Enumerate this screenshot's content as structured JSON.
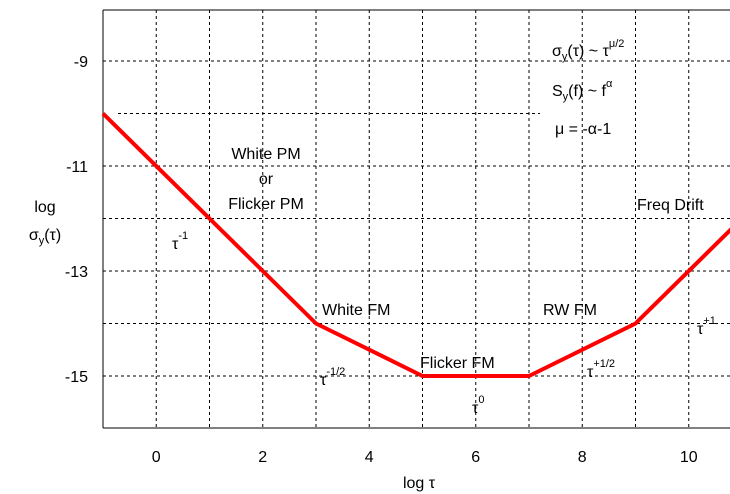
{
  "chart_data": {
    "type": "line",
    "xlabel": "log τ",
    "ylabel_lines": [
      "log",
      "σy(τ)"
    ],
    "ylabel": {
      "line1": "log",
      "main": "σ",
      "sub": "y",
      "rest": "(τ)"
    },
    "xlim": [
      -1,
      11
    ],
    "ylim": [
      -16,
      -8
    ],
    "x_ticks": [
      0,
      2,
      4,
      6,
      8,
      10
    ],
    "y_ticks": [
      -9,
      -11,
      -13,
      -15
    ],
    "x_tick_labels": [
      "0",
      "2",
      "4",
      "6",
      "8",
      "10"
    ],
    "y_tick_labels": [
      "-9",
      "-11",
      "-13",
      "-15"
    ],
    "grid": true,
    "series": [
      {
        "color": "#ff0000",
        "x": [
          -1,
          3,
          5,
          7,
          9,
          11
        ],
        "y": [
          -10,
          -14,
          -15,
          -15,
          -14,
          -12
        ]
      }
    ],
    "region_labels": {
      "white_pm_1": "White PM",
      "white_pm_or": "or",
      "flicker_pm": "Flicker PM",
      "white_fm": "White FM",
      "flicker_fm": "Flicker FM",
      "rw_fm": "RW FM",
      "freq_drift": "Freq Drift"
    },
    "slope_labels": {
      "base": "τ",
      "minus1": "-1",
      "minus_half": "-1/2",
      "zero": "0",
      "plus_half": "+1/2",
      "plus1": "+1"
    },
    "formulas": {
      "f1": {
        "main": "σ",
        "sub": "y",
        "mid": "(τ) ~ τ",
        "sup": "μ/2"
      },
      "f2": {
        "main": "S",
        "sub": "y",
        "mid": "(f) ~ f",
        "sup": "α"
      },
      "f3": {
        "text": "μ = -α-1"
      }
    }
  }
}
